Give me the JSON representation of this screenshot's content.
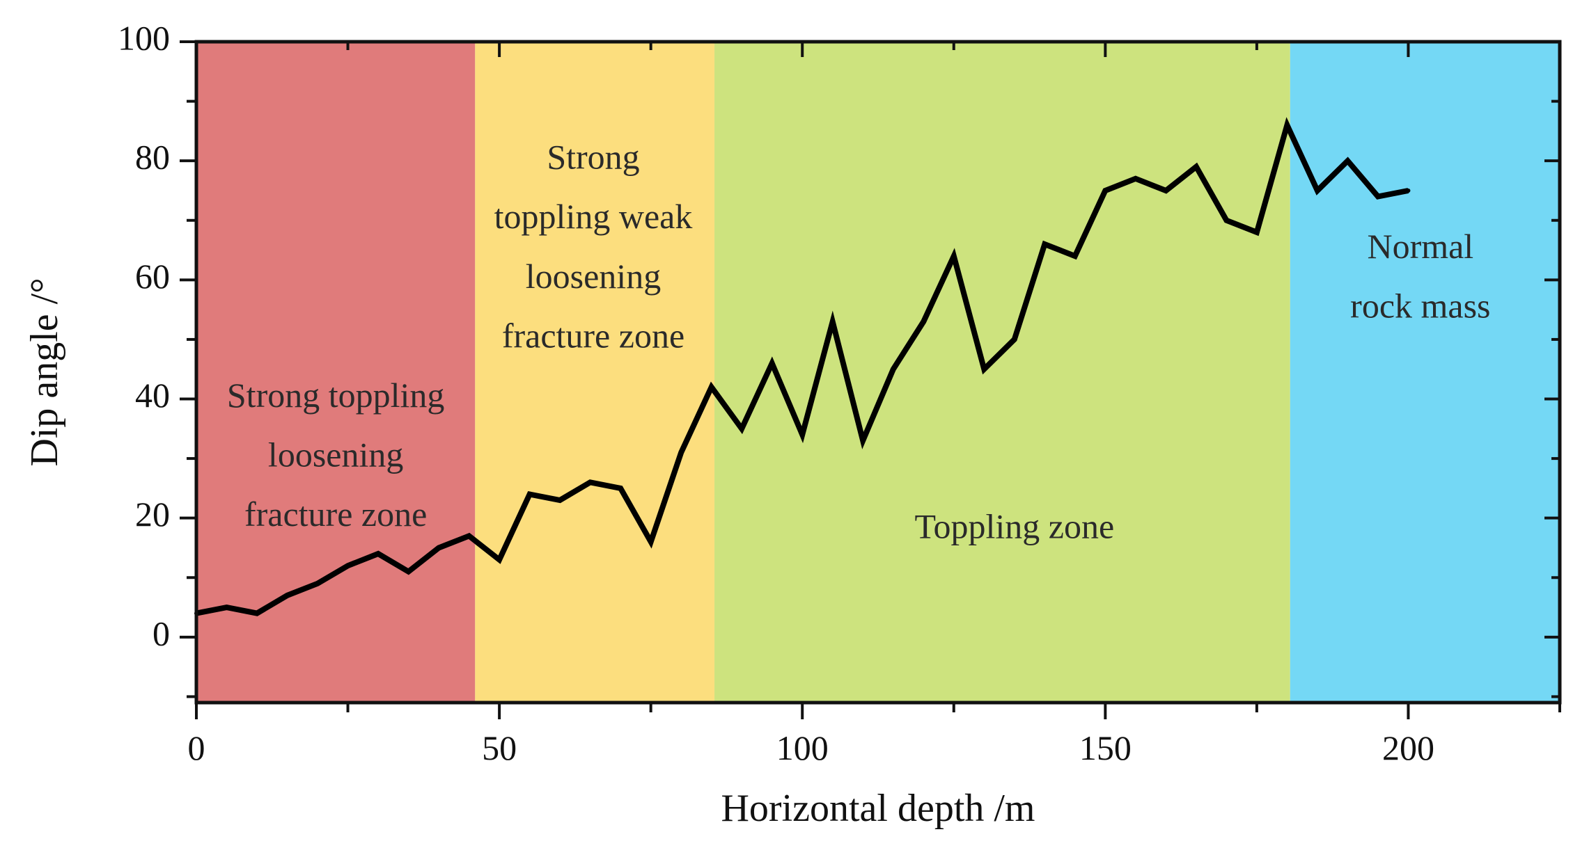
{
  "chart_data": {
    "type": "line",
    "title": "",
    "xlabel": "Horizontal depth /m",
    "ylabel": "Dip angle /°",
    "xlim": [
      0,
      225
    ],
    "ylim": [
      -11,
      100
    ],
    "x_ticks": [
      0,
      50,
      100,
      150,
      200
    ],
    "y_ticks": [
      0,
      20,
      40,
      60,
      80,
      100
    ],
    "grid": false,
    "legend": "none",
    "zones": [
      {
        "name": "strong-toppling-loosening-fracture-zone",
        "lines": [
          "Strong toppling",
          "loosening",
          "fracture zone"
        ],
        "from": 0,
        "to": 46,
        "color": "#e07b7b",
        "label_x": 23,
        "label_y": [
          40,
          30,
          20
        ]
      },
      {
        "name": "strong-toppling-weak-loosening-fracture-zone",
        "lines": [
          "Strong",
          "toppling weak",
          "loosening",
          "fracture zone"
        ],
        "from": 46,
        "to": 85.5,
        "color": "#fcde7e",
        "label_x": 65.5,
        "label_y": [
          80,
          70,
          60,
          50
        ]
      },
      {
        "name": "toppling-zone",
        "lines": [
          "Toppling zone"
        ],
        "from": 85.5,
        "to": 180.5,
        "color": "#cde37e",
        "label_x": 135,
        "label_y": [
          18
        ]
      },
      {
        "name": "normal-rock-mass",
        "lines": [
          "Normal",
          "rock mass"
        ],
        "from": 180.5,
        "to": 225,
        "color": "#74d8f5",
        "label_x": 202,
        "label_y": [
          65,
          55
        ]
      }
    ],
    "series": [
      {
        "name": "Dip angle",
        "color": "#000000",
        "x": [
          0,
          5,
          10,
          15,
          20,
          25,
          30,
          35,
          40,
          45,
          50,
          55,
          60,
          65,
          70,
          75,
          80,
          85,
          90,
          95,
          100,
          105,
          110,
          115,
          120,
          125,
          130,
          135,
          140,
          145,
          150,
          155,
          160,
          165,
          170,
          175,
          180,
          185,
          190,
          195,
          200
        ],
        "y": [
          4,
          5,
          4,
          7,
          9,
          12,
          14,
          11,
          15,
          17,
          13,
          24,
          23,
          26,
          25,
          16,
          31,
          42,
          35,
          46,
          34,
          53,
          33,
          45,
          53,
          64,
          45,
          50,
          66,
          64,
          75,
          77,
          75,
          79,
          70,
          68,
          86,
          75,
          80,
          74,
          75
        ]
      }
    ]
  }
}
